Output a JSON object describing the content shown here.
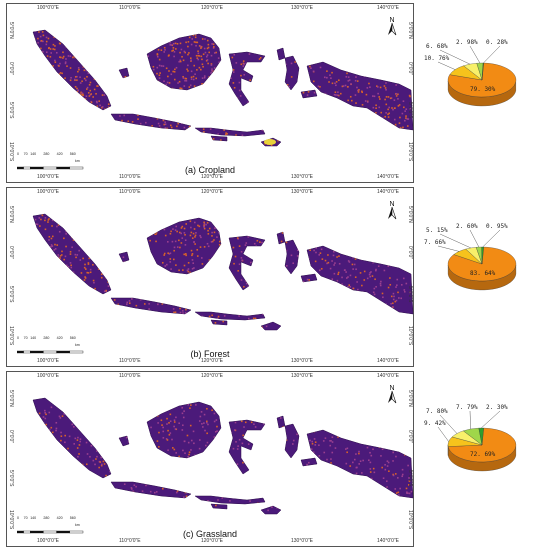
{
  "panels": [
    {
      "caption": "(a) Cropland",
      "colors": {
        "main": "#e36f10",
        "p2": "#f6c31c",
        "p3": "#f8f06a",
        "p4": "#7ed321",
        "p5": "#2d9f2d"
      },
      "pie": {
        "slices": [
          {
            "label": "79. 30%",
            "value": 79.3,
            "color": "#f28b14"
          },
          {
            "label": "10. 76%",
            "value": 10.76,
            "color": "#f6c31c"
          },
          {
            "label": "6. 68%",
            "value": 6.68,
            "color": "#f8f06a"
          },
          {
            "label": "2. 98%",
            "value": 2.98,
            "color": "#9fd64a"
          },
          {
            "label": "0. 28%",
            "value": 0.28,
            "color": "#2d9f2d"
          }
        ]
      }
    },
    {
      "caption": "(b) Forest",
      "pie": {
        "slices": [
          {
            "label": "83. 64%",
            "value": 83.64,
            "color": "#f28b14"
          },
          {
            "label": "7. 66%",
            "value": 7.66,
            "color": "#f6c31c"
          },
          {
            "label": "5. 15%",
            "value": 5.15,
            "color": "#f8f06a"
          },
          {
            "label": "2. 60%",
            "value": 2.6,
            "color": "#9fd64a"
          },
          {
            "label": "0. 95%",
            "value": 0.95,
            "color": "#2d9f2d"
          }
        ]
      }
    },
    {
      "caption": "(c) Grassland",
      "pie": {
        "slices": [
          {
            "label": "72. 69%",
            "value": 72.69,
            "color": "#f28b14"
          },
          {
            "label": "9. 42%",
            "value": 9.42,
            "color": "#f6c31c"
          },
          {
            "label": "7. 80%",
            "value": 7.8,
            "color": "#f8f06a"
          },
          {
            "label": "7. 79%",
            "value": 7.79,
            "color": "#9fd64a"
          },
          {
            "label": "2. 30%",
            "value": 2.3,
            "color": "#2d9f2d"
          }
        ]
      }
    }
  ],
  "map": {
    "lon_labels": [
      "100°0'0\"E",
      "110°0'0\"E",
      "120°0'0\"E",
      "130°0'0\"E",
      "140°0'0\"E"
    ],
    "lat_labels": [
      "5°0'0\"N",
      "0°0'0\"",
      "5°0'0\"S",
      "10°0'0\"S"
    ],
    "north_label": "N",
    "scale_ticks": [
      "0",
      "70",
      "140",
      "280",
      "420",
      "560"
    ],
    "scale_unit": "km",
    "land_color": "#4b1a7a",
    "hot_color": "#d9622a",
    "cool_color": "#9a3f8f"
  }
}
